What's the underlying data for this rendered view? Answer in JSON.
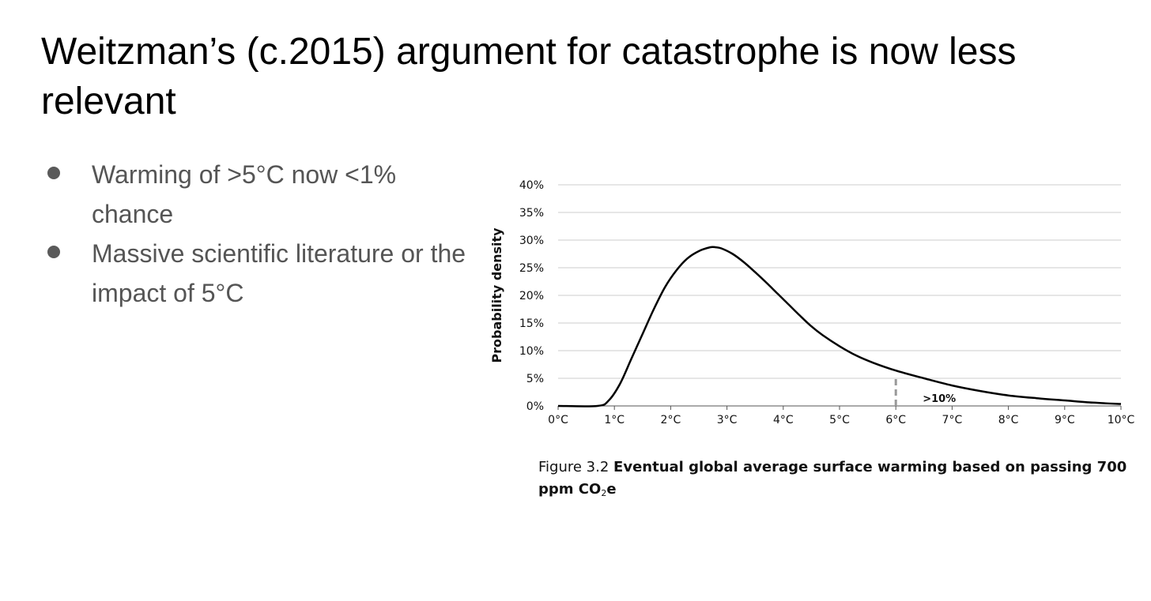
{
  "slide": {
    "title": "Weitzman’s (c.2015) argument for catastrophe is now less relevant",
    "bullets": [
      "Warming of >5°C now <1% chance",
      "Massive scientific literature or the impact of 5°C"
    ]
  },
  "figure": {
    "caption_prefix": "Figure 3.2",
    "caption_bold": "Eventual global average surface warming based on passing 700 ppm CO",
    "caption_sub": "2",
    "caption_suffix": "e"
  },
  "chart_data": {
    "type": "line",
    "title": "",
    "xlabel": "",
    "ylabel": "Probability density",
    "x_ticks": [
      "0°C",
      "1°C",
      "2°C",
      "3°C",
      "4°C",
      "5°C",
      "6°C",
      "7°C",
      "8°C",
      "9°C",
      "10°C"
    ],
    "y_ticks": [
      "0%",
      "5%",
      "10%",
      "15%",
      "20%",
      "25%",
      "30%",
      "35%",
      "40%"
    ],
    "xlim": [
      0,
      10
    ],
    "ylim": [
      0,
      40
    ],
    "grid": "horizontal",
    "series": [
      {
        "x": [
          0,
          0.7,
          0.9,
          1.1,
          1.3,
          1.5,
          1.7,
          1.9,
          2.1,
          2.3,
          2.5,
          2.7,
          2.8,
          2.9,
          3.1,
          3.3,
          3.5,
          3.7,
          3.9,
          4.1,
          4.3,
          4.5,
          4.7,
          5.0,
          5.3,
          5.6,
          6.0,
          6.5,
          7.0,
          7.5,
          8.0,
          8.5,
          9.0,
          9.5,
          10.0
        ],
        "y": [
          0,
          0,
          1,
          4,
          8.5,
          13,
          17.5,
          21.5,
          24.5,
          26.7,
          28.0,
          28.7,
          28.7,
          28.5,
          27.5,
          26.0,
          24.2,
          22.3,
          20.3,
          18.3,
          16.3,
          14.4,
          12.8,
          10.8,
          9.1,
          7.8,
          6.4,
          5.0,
          3.7,
          2.7,
          1.9,
          1.4,
          1.0,
          0.6,
          0.35
        ]
      }
    ],
    "marker": {
      "x": 6,
      "label": ">10%"
    },
    "colors": {
      "curve": "#000000",
      "grid": "#cccccc",
      "marker": "#999999"
    }
  }
}
